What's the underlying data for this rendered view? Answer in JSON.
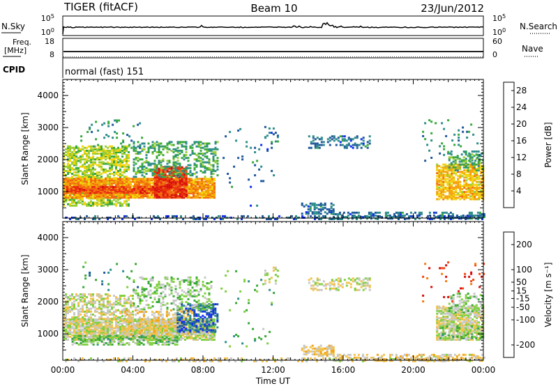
{
  "header": {
    "radar": "TIGER (fitACF)",
    "beam": "Beam 10",
    "date": "23/Jun/2012"
  },
  "status": {
    "nsky_label": "N.Sky",
    "nsky_ticks": [
      "10^5",
      "10^0"
    ],
    "nsearch_label": "N.Search",
    "nsearch_ticks": [
      "10^5",
      "10^0"
    ],
    "freq_label": "Freq.",
    "freq_unit": "[MHz]",
    "freq_ticks": [
      "18",
      "8"
    ],
    "nave_label": "Nave",
    "nave_ticks": [
      "60",
      "0"
    ],
    "cpid_label": "CPID",
    "cpid_value": "normal (fast) 151"
  },
  "chart_data": [
    {
      "type": "heatmap",
      "name": "power",
      "ylabel": "Slant Range [km]",
      "xlabel": "",
      "xticks": [
        "00:00",
        "04:00",
        "08:00",
        "12:00",
        "16:00",
        "20:00",
        "00:00"
      ],
      "yticks": [
        1000,
        2000,
        3000,
        4000
      ],
      "xlim_hours": [
        0,
        24
      ],
      "ylim_km": [
        180,
        4500
      ],
      "colorbar": {
        "label": "Power [dB]",
        "ticks": [
          4,
          8,
          12,
          16,
          20,
          24,
          28
        ],
        "range": [
          0,
          30
        ],
        "colors": [
          "#1030f0",
          "#20589c",
          "#2f8e8a",
          "#38a83c",
          "#9acc32",
          "#f2d40c",
          "#f4a20a",
          "#f26a10",
          "#e83010",
          "#d80f0f"
        ]
      },
      "regions": [
        {
          "t0": 0.0,
          "t1": 3.8,
          "r0": 600,
          "r1": 2450,
          "level": 14,
          "density": 0.6
        },
        {
          "t0": 0.0,
          "t1": 8.7,
          "r0": 850,
          "r1": 1450,
          "level": 20,
          "density": 0.9
        },
        {
          "t0": 0.2,
          "t1": 6.0,
          "r0": 1000,
          "r1": 1200,
          "level": 24,
          "density": 0.9
        },
        {
          "t0": 5.2,
          "t1": 7.0,
          "r0": 850,
          "r1": 1800,
          "level": 26,
          "density": 0.85
        },
        {
          "t0": 4.0,
          "t1": 8.8,
          "r0": 1500,
          "r1": 2600,
          "level": 10,
          "density": 0.4
        },
        {
          "t0": 1.0,
          "t1": 4.5,
          "r0": 2400,
          "r1": 3300,
          "level": 8,
          "density": 0.08
        },
        {
          "t0": 13.6,
          "t1": 15.4,
          "r0": 350,
          "r1": 700,
          "level": 6,
          "density": 0.5
        },
        {
          "t0": 15.4,
          "t1": 24.0,
          "r0": 200,
          "r1": 420,
          "level": 6,
          "density": 0.45
        },
        {
          "t0": 0.0,
          "t1": 24.0,
          "r0": 180,
          "r1": 280,
          "level": 5,
          "density": 0.25
        },
        {
          "t0": 14.0,
          "t1": 17.5,
          "r0": 2400,
          "r1": 2800,
          "level": 6,
          "density": 0.35
        },
        {
          "t0": 11.5,
          "t1": 12.3,
          "r0": 2600,
          "r1": 3100,
          "level": 6,
          "density": 0.2
        },
        {
          "t0": 21.3,
          "t1": 24.0,
          "r0": 800,
          "r1": 1900,
          "level": 18,
          "density": 0.7
        },
        {
          "t0": 22.0,
          "t1": 24.0,
          "r0": 1700,
          "r1": 2300,
          "level": 10,
          "density": 0.35
        },
        {
          "t0": 20.5,
          "t1": 24.0,
          "r0": 2000,
          "r1": 3300,
          "level": 8,
          "density": 0.06
        },
        {
          "t0": 9.0,
          "t1": 12.0,
          "r0": 600,
          "r1": 3000,
          "level": 6,
          "density": 0.03
        }
      ]
    },
    {
      "type": "heatmap",
      "name": "velocity",
      "ylabel": "Slant Range [km]",
      "xlabel": "Time UT",
      "xticks": [
        "00:00",
        "04:00",
        "08:00",
        "12:00",
        "16:00",
        "20:00",
        "00:00"
      ],
      "yticks": [
        1000,
        2000,
        3000,
        4000
      ],
      "xlim_hours": [
        0,
        24
      ],
      "ylim_km": [
        180,
        4500
      ],
      "colorbar": {
        "label": "Velocity [m s⁻¹]",
        "ticks": [
          -200,
          -100,
          -50,
          -15,
          15,
          50,
          100,
          200
        ],
        "range": [
          -250,
          250
        ],
        "colors": [
          "#d80f0f",
          "#f24510",
          "#f47c10",
          "#f2a418",
          "#f2c24c",
          "#c8c8c8",
          "#80d040",
          "#38a838",
          "#2f8e8a",
          "#20589c",
          "#1030f0"
        ]
      },
      "regions": [
        {
          "t0": 0.0,
          "t1": 8.7,
          "r0": 850,
          "r1": 1500,
          "level": 0,
          "density": 0.85
        },
        {
          "t0": 0.0,
          "t1": 4.0,
          "r0": 1500,
          "r1": 2300,
          "level": 0,
          "density": 0.5
        },
        {
          "t0": 0.5,
          "t1": 6.5,
          "r0": 700,
          "r1": 1000,
          "level": 60,
          "density": 0.5
        },
        {
          "t0": 3.5,
          "t1": 7.5,
          "r0": 1000,
          "r1": 1800,
          "level": -40,
          "density": 0.35
        },
        {
          "t0": 6.5,
          "t1": 8.8,
          "r0": 1100,
          "r1": 2000,
          "level": 180,
          "density": 0.5
        },
        {
          "t0": 4.0,
          "t1": 8.5,
          "r0": 1800,
          "r1": 2800,
          "level": 40,
          "density": 0.3
        },
        {
          "t0": 1.0,
          "t1": 4.5,
          "r0": 2400,
          "r1": 3300,
          "level": 120,
          "density": 0.06
        },
        {
          "t0": 13.6,
          "t1": 15.4,
          "r0": 350,
          "r1": 700,
          "level": -40,
          "density": 0.5
        },
        {
          "t0": 15.4,
          "t1": 24.0,
          "r0": 200,
          "r1": 420,
          "level": -30,
          "density": 0.45
        },
        {
          "t0": 0.0,
          "t1": 24.0,
          "r0": 180,
          "r1": 280,
          "level": -20,
          "density": 0.25
        },
        {
          "t0": 14.0,
          "t1": 17.5,
          "r0": 2400,
          "r1": 2800,
          "level": 0,
          "density": 0.35
        },
        {
          "t0": 11.5,
          "t1": 12.3,
          "r0": 2600,
          "r1": 3100,
          "level": 0,
          "density": 0.2
        },
        {
          "t0": 21.3,
          "t1": 24.0,
          "r0": 850,
          "r1": 1900,
          "level": 0,
          "density": 0.75
        },
        {
          "t0": 21.5,
          "t1": 24.0,
          "r0": 900,
          "r1": 1300,
          "level": 60,
          "density": 0.3
        },
        {
          "t0": 22.0,
          "t1": 24.0,
          "r0": 1700,
          "r1": 2300,
          "level": 40,
          "density": 0.3
        },
        {
          "t0": 20.5,
          "t1": 24.0,
          "r0": 2000,
          "r1": 3300,
          "level": -200,
          "density": 0.05
        },
        {
          "t0": 9.0,
          "t1": 12.0,
          "r0": 600,
          "r1": 3000,
          "level": 80,
          "density": 0.03
        }
      ]
    }
  ]
}
